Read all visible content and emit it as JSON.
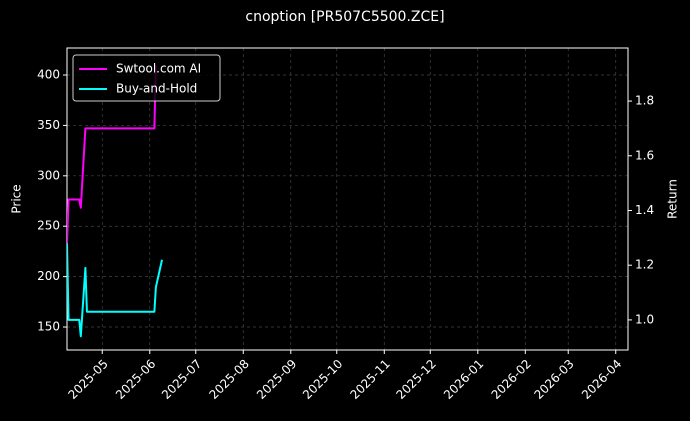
{
  "chart_data": {
    "type": "line",
    "title": "cnoption [PR507C5500.ZCE]",
    "ylabel": "Price",
    "y2label": "Return",
    "x": [
      "2025-04-08",
      "2025-04-09",
      "2025-04-16",
      "2025-04-17",
      "2025-04-20",
      "2025-04-21",
      "2025-06-04",
      "2025-06-05",
      "2025-06-09"
    ],
    "series": [
      {
        "name": "Swtool.com AI",
        "color": "#ff00ff",
        "axis": "y2",
        "values": [
          1.28,
          1.44,
          1.44,
          1.41,
          1.7,
          1.7,
          1.7,
          1.93,
          null
        ]
      },
      {
        "name": "Buy-and-Hold",
        "color": "#00ffff",
        "axis": "y2",
        "values": [
          1.28,
          1.0,
          1.0,
          0.94,
          1.19,
          1.03,
          1.03,
          1.12,
          1.22
        ]
      }
    ],
    "xlim": [
      "2025-04-08",
      "2026-04-09"
    ],
    "xticks": [
      "2025-05",
      "2025-06",
      "2025-07",
      "2025-08",
      "2025-09",
      "2025-10",
      "2025-11",
      "2025-12",
      "2026-01",
      "2026-02",
      "2026-03",
      "2026-04"
    ],
    "ylim": [
      127.2,
      426.8
    ],
    "yticks": [
      150,
      200,
      250,
      300,
      350,
      400
    ],
    "y2lim": [
      0.89,
      1.994
    ],
    "y2ticks": [
      {
        "value": 1.0,
        "label": "1.0"
      },
      1.2,
      1.4,
      1.6,
      1.8
    ],
    "grid": true,
    "legend": "upper left"
  }
}
